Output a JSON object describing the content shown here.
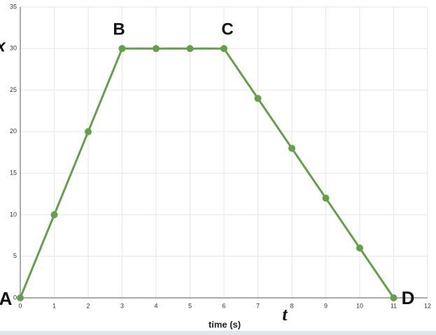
{
  "chart_data": {
    "type": "line",
    "x_label": "time (s)",
    "x": [
      0,
      1,
      2,
      3,
      4,
      5,
      6,
      7,
      8,
      9,
      10,
      11
    ],
    "series": [
      {
        "color": "#64a04c",
        "values": [
          0,
          10,
          20,
          30,
          30,
          30,
          30,
          24,
          18,
          12,
          6,
          0
        ]
      }
    ],
    "xlim": [
      0,
      12
    ],
    "xticks": [
      0,
      1,
      2,
      3,
      4,
      5,
      6,
      7,
      8,
      9,
      10,
      11,
      12
    ],
    "ylim": [
      0,
      35
    ],
    "yticks": [
      0,
      5,
      10,
      15,
      20,
      25,
      30,
      35
    ],
    "grid": true,
    "annotations": [
      "A",
      "B",
      "C",
      "D",
      "x",
      "t"
    ]
  }
}
